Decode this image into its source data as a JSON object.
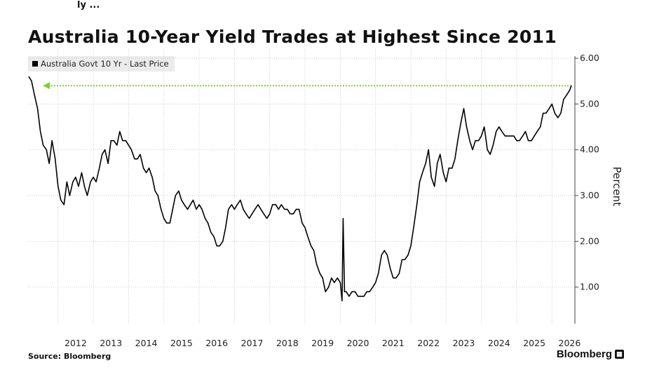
{
  "header": {
    "top_note": "ly ...",
    "title": "Australia 10-Year Yield Trades at Highest Since 2011"
  },
  "footer": {
    "source": "Source: Bloomberg",
    "brand": "Bloomberg"
  },
  "colors": {
    "series": "#000000",
    "reference_line": "#7dd321",
    "grid": "#bfbfbf",
    "legend_bg": "#ececec"
  },
  "chart_data": {
    "type": "line",
    "title": "Australia 10-Year Yield Trades at Highest Since 2011",
    "xlabel": "",
    "ylabel": "Percent",
    "y_axis_side": "right",
    "ylim": [
      0.2,
      6.2
    ],
    "xlim": [
      2011.15,
      2026.65
    ],
    "x_tick_labels": [
      "2012",
      "2013",
      "2014",
      "2015",
      "2016",
      "2017",
      "2018",
      "2019",
      "2020",
      "2021",
      "2022",
      "2023",
      "2024",
      "2025",
      "2026"
    ],
    "y_tick_labels": [
      "1.00",
      "2.00",
      "3.00",
      "4.00",
      "5.00",
      "6.00"
    ],
    "y_ticks": [
      1,
      2,
      3,
      4,
      5,
      6
    ],
    "grid": true,
    "legend": {
      "position": "top-left",
      "entries": [
        "Australia Govt 10 Yr - Last Price"
      ]
    },
    "annotations": [
      {
        "type": "horizontal-arrow",
        "y": 5.4,
        "x_from": 2026.55,
        "x_to": 2011.65,
        "style": "dotted",
        "color": "#7dd321"
      }
    ],
    "series": [
      {
        "name": "Australia Govt 10 Yr - Last Price",
        "x": [
          2011.17,
          2011.25,
          2011.33,
          2011.42,
          2011.5,
          2011.58,
          2011.67,
          2011.75,
          2011.83,
          2011.92,
          2012.0,
          2012.08,
          2012.17,
          2012.25,
          2012.33,
          2012.42,
          2012.5,
          2012.58,
          2012.67,
          2012.75,
          2012.83,
          2012.92,
          2013.0,
          2013.08,
          2013.17,
          2013.25,
          2013.33,
          2013.42,
          2013.5,
          2013.58,
          2013.67,
          2013.75,
          2013.83,
          2013.92,
          2014.0,
          2014.08,
          2014.17,
          2014.25,
          2014.33,
          2014.42,
          2014.5,
          2014.58,
          2014.67,
          2014.75,
          2014.83,
          2014.92,
          2015.0,
          2015.08,
          2015.17,
          2015.25,
          2015.33,
          2015.42,
          2015.5,
          2015.58,
          2015.67,
          2015.75,
          2015.83,
          2015.92,
          2016.0,
          2016.08,
          2016.17,
          2016.25,
          2016.33,
          2016.42,
          2016.5,
          2016.58,
          2016.67,
          2016.75,
          2016.83,
          2016.92,
          2017.0,
          2017.08,
          2017.17,
          2017.25,
          2017.33,
          2017.42,
          2017.5,
          2017.58,
          2017.67,
          2017.75,
          2017.83,
          2017.92,
          2018.0,
          2018.08,
          2018.17,
          2018.25,
          2018.33,
          2018.42,
          2018.5,
          2018.58,
          2018.67,
          2018.75,
          2018.83,
          2018.92,
          2019.0,
          2019.08,
          2019.17,
          2019.25,
          2019.33,
          2019.42,
          2019.5,
          2019.58,
          2019.67,
          2019.75,
          2019.83,
          2019.92,
          2020.0,
          2020.05,
          2020.08,
          2020.12,
          2020.17,
          2020.25,
          2020.33,
          2020.42,
          2020.5,
          2020.58,
          2020.67,
          2020.75,
          2020.83,
          2020.92,
          2021.0,
          2021.08,
          2021.17,
          2021.25,
          2021.33,
          2021.42,
          2021.5,
          2021.58,
          2021.67,
          2021.75,
          2021.83,
          2021.92,
          2022.0,
          2022.08,
          2022.17,
          2022.25,
          2022.33,
          2022.42,
          2022.5,
          2022.58,
          2022.67,
          2022.75,
          2022.83,
          2022.92,
          2023.0,
          2023.08,
          2023.17,
          2023.25,
          2023.33,
          2023.42,
          2023.5,
          2023.58,
          2023.67,
          2023.75,
          2023.83,
          2023.92,
          2024.0,
          2024.08,
          2024.17,
          2024.25,
          2024.33,
          2024.42,
          2024.5,
          2024.58,
          2024.67,
          2024.75,
          2024.83,
          2024.92,
          2025.0,
          2025.08,
          2025.17,
          2025.25,
          2025.33,
          2025.42,
          2025.5,
          2025.58,
          2025.67,
          2025.75,
          2025.83,
          2025.92,
          2026.0,
          2026.08,
          2026.17,
          2026.25,
          2026.33,
          2026.42,
          2026.5,
          2026.55
        ],
        "y": [
          5.6,
          5.5,
          5.2,
          4.9,
          4.4,
          4.1,
          4.0,
          3.7,
          4.2,
          3.8,
          3.2,
          2.9,
          2.8,
          3.3,
          3.0,
          3.3,
          3.4,
          3.2,
          3.5,
          3.2,
          3.0,
          3.3,
          3.4,
          3.3,
          3.6,
          3.9,
          4.0,
          3.7,
          4.2,
          4.2,
          4.1,
          4.4,
          4.2,
          4.2,
          4.1,
          4.0,
          3.8,
          3.8,
          3.9,
          3.6,
          3.5,
          3.6,
          3.4,
          3.1,
          3.0,
          2.7,
          2.5,
          2.4,
          2.4,
          2.7,
          3.0,
          3.1,
          2.9,
          2.8,
          2.7,
          2.8,
          2.9,
          2.7,
          2.8,
          2.7,
          2.5,
          2.4,
          2.2,
          2.1,
          1.9,
          1.9,
          2.0,
          2.3,
          2.7,
          2.8,
          2.7,
          2.8,
          2.9,
          2.7,
          2.6,
          2.5,
          2.6,
          2.7,
          2.8,
          2.7,
          2.6,
          2.5,
          2.6,
          2.8,
          2.8,
          2.7,
          2.8,
          2.7,
          2.7,
          2.6,
          2.6,
          2.7,
          2.7,
          2.4,
          2.3,
          2.1,
          1.9,
          1.8,
          1.5,
          1.3,
          1.2,
          0.9,
          1.0,
          1.2,
          1.1,
          1.2,
          1.1,
          0.7,
          2.5,
          0.9,
          0.9,
          0.8,
          0.9,
          0.9,
          0.8,
          0.8,
          0.8,
          0.9,
          0.9,
          1.0,
          1.1,
          1.3,
          1.7,
          1.8,
          1.7,
          1.4,
          1.2,
          1.2,
          1.3,
          1.6,
          1.6,
          1.7,
          1.9,
          2.3,
          2.8,
          3.3,
          3.5,
          3.7,
          4.0,
          3.4,
          3.2,
          3.7,
          3.9,
          3.5,
          3.3,
          3.6,
          3.6,
          3.8,
          4.2,
          4.6,
          4.9,
          4.5,
          4.2,
          4.0,
          4.2,
          4.2,
          4.3,
          4.5,
          4.0,
          3.9,
          4.1,
          4.4,
          4.5,
          4.4,
          4.3,
          4.3,
          4.3,
          4.3,
          4.2,
          4.2,
          4.3,
          4.4,
          4.2,
          4.2,
          4.3,
          4.4,
          4.5,
          4.8,
          4.8,
          4.9,
          5.0,
          4.8,
          4.7,
          4.8,
          5.1,
          5.2,
          5.3,
          5.4
        ]
      }
    ]
  }
}
